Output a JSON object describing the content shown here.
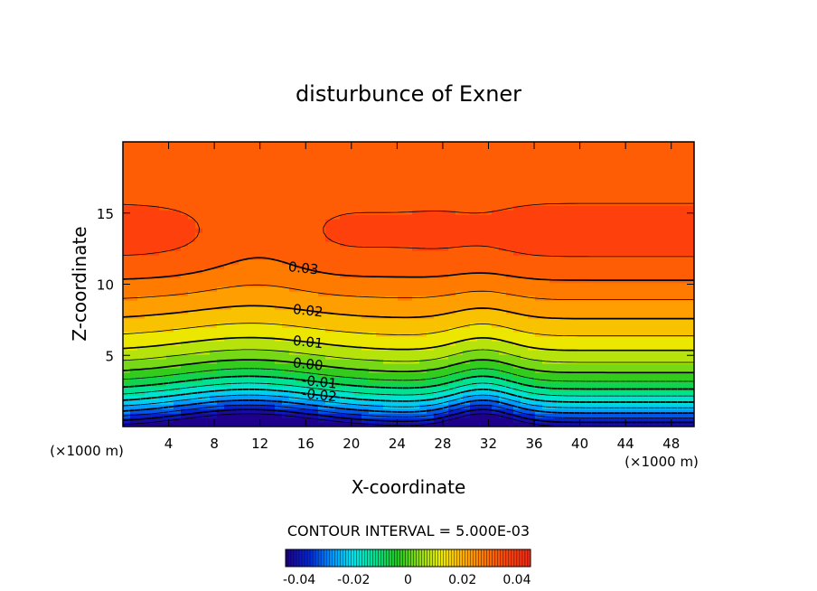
{
  "chart_data": {
    "type": "heatmap",
    "subtype": "filled-contour",
    "title": "disturbunce of Exner",
    "xlabel": "X-coordinate",
    "ylabel": "Z-coordinate",
    "x_units": "(×1000 m)",
    "y_units": "(×1000 m)",
    "xlim": [
      0,
      50
    ],
    "ylim": [
      0,
      20
    ],
    "x_ticks": [
      4,
      8,
      12,
      16,
      20,
      24,
      28,
      32,
      36,
      40,
      44,
      48
    ],
    "y_ticks": [
      5,
      10,
      15
    ],
    "x_tick_labels": [
      "4",
      "8",
      "12",
      "16",
      "20",
      "24",
      "28",
      "32",
      "36",
      "40",
      "44",
      "48"
    ],
    "y_tick_labels": [
      "5",
      "10",
      "15"
    ],
    "contour_interval_text": "CONTOUR INTERVAL = 5.000E-03",
    "contour_interval": 0.005,
    "value_range": [
      -0.045,
      0.045
    ],
    "contour_levels": [
      {
        "value": 0.03,
        "label": "0.03",
        "x": 15.8
      },
      {
        "value": 0.02,
        "label": "0.02",
        "x": 16.2
      },
      {
        "value": 0.01,
        "label": "0.01",
        "x": 16.2
      },
      {
        "value": 0.0,
        "label": "0.00",
        "x": 16.2
      },
      {
        "value": -0.01,
        "label": "-0.01",
        "x": 17.2
      },
      {
        "value": -0.02,
        "label": "-0.02",
        "x": 17.2
      }
    ],
    "colorbar": {
      "ticks": [
        -0.04,
        -0.02,
        0,
        0.02,
        0.04
      ],
      "tick_labels": [
        "-0.04",
        "-0.02",
        "0",
        "0.02",
        "0.04"
      ],
      "range": [
        -0.045,
        0.045
      ]
    }
  }
}
